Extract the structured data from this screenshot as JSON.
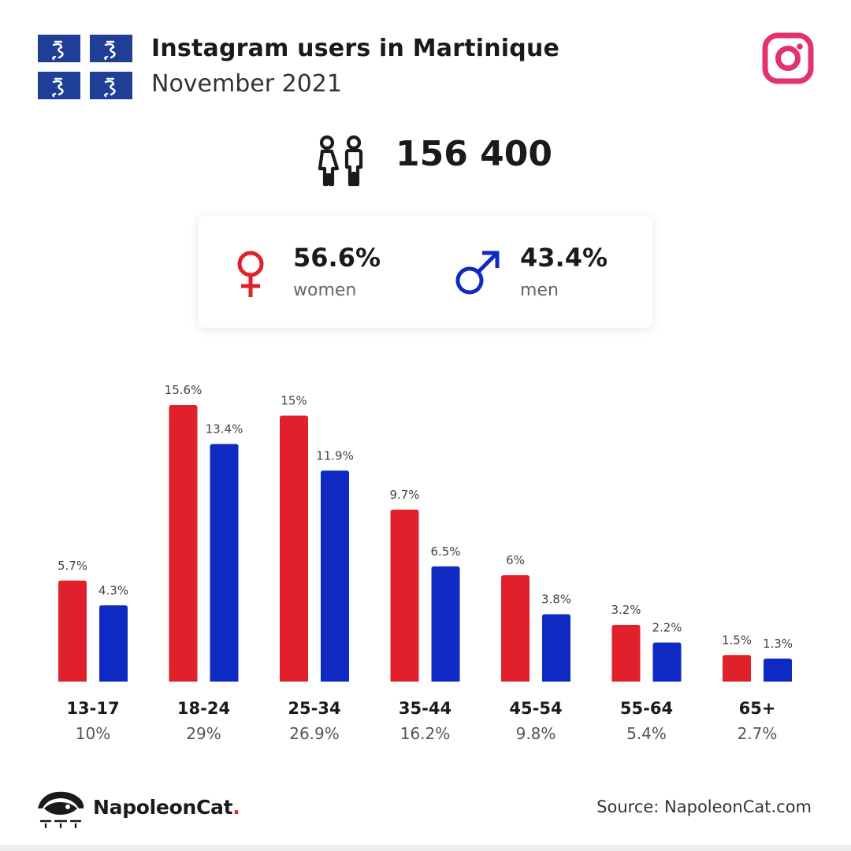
{
  "header": {
    "title": "Instagram users in Martinique",
    "subtitle": "November 2021"
  },
  "total": {
    "value": "156 400",
    "icon": "people-icon"
  },
  "gender": {
    "women": {
      "percent": "56.6%",
      "label": "women",
      "color": "#e0202a"
    },
    "men": {
      "percent": "43.4%",
      "label": "men",
      "color": "#0f2ac2"
    }
  },
  "chart_data": {
    "type": "bar",
    "categories": [
      "13-17",
      "18-24",
      "25-34",
      "35-44",
      "45-54",
      "55-64",
      "65+"
    ],
    "category_totals": [
      "10%",
      "29%",
      "26.9%",
      "16.2%",
      "9.8%",
      "5.4%",
      "2.7%"
    ],
    "series": [
      {
        "values": [
          5.7,
          15.6,
          15,
          9.7,
          6,
          3.2,
          1.5
        ],
        "labels": [
          "5.7%",
          "15.6%",
          "15%",
          "9.7%",
          "6%",
          "3.2%",
          "1.5%"
        ],
        "color": "#e0202a"
      },
      {
        "values": [
          4.3,
          13.4,
          11.9,
          6.5,
          3.8,
          2.2,
          1.3
        ],
        "labels": [
          "4.3%",
          "13.4%",
          "11.9%",
          "6.5%",
          "3.8%",
          "2.2%",
          "1.3%"
        ],
        "color": "#0f2ac2"
      }
    ],
    "grid": false
  },
  "footer": {
    "brand": "NapoleonCat",
    "brand_dot": ".",
    "source": "Source: NapoleonCat.com"
  },
  "colors": {
    "flag_blue": "#1e3f95",
    "instagram": "#e3336e",
    "text": "#1a1a1a"
  }
}
